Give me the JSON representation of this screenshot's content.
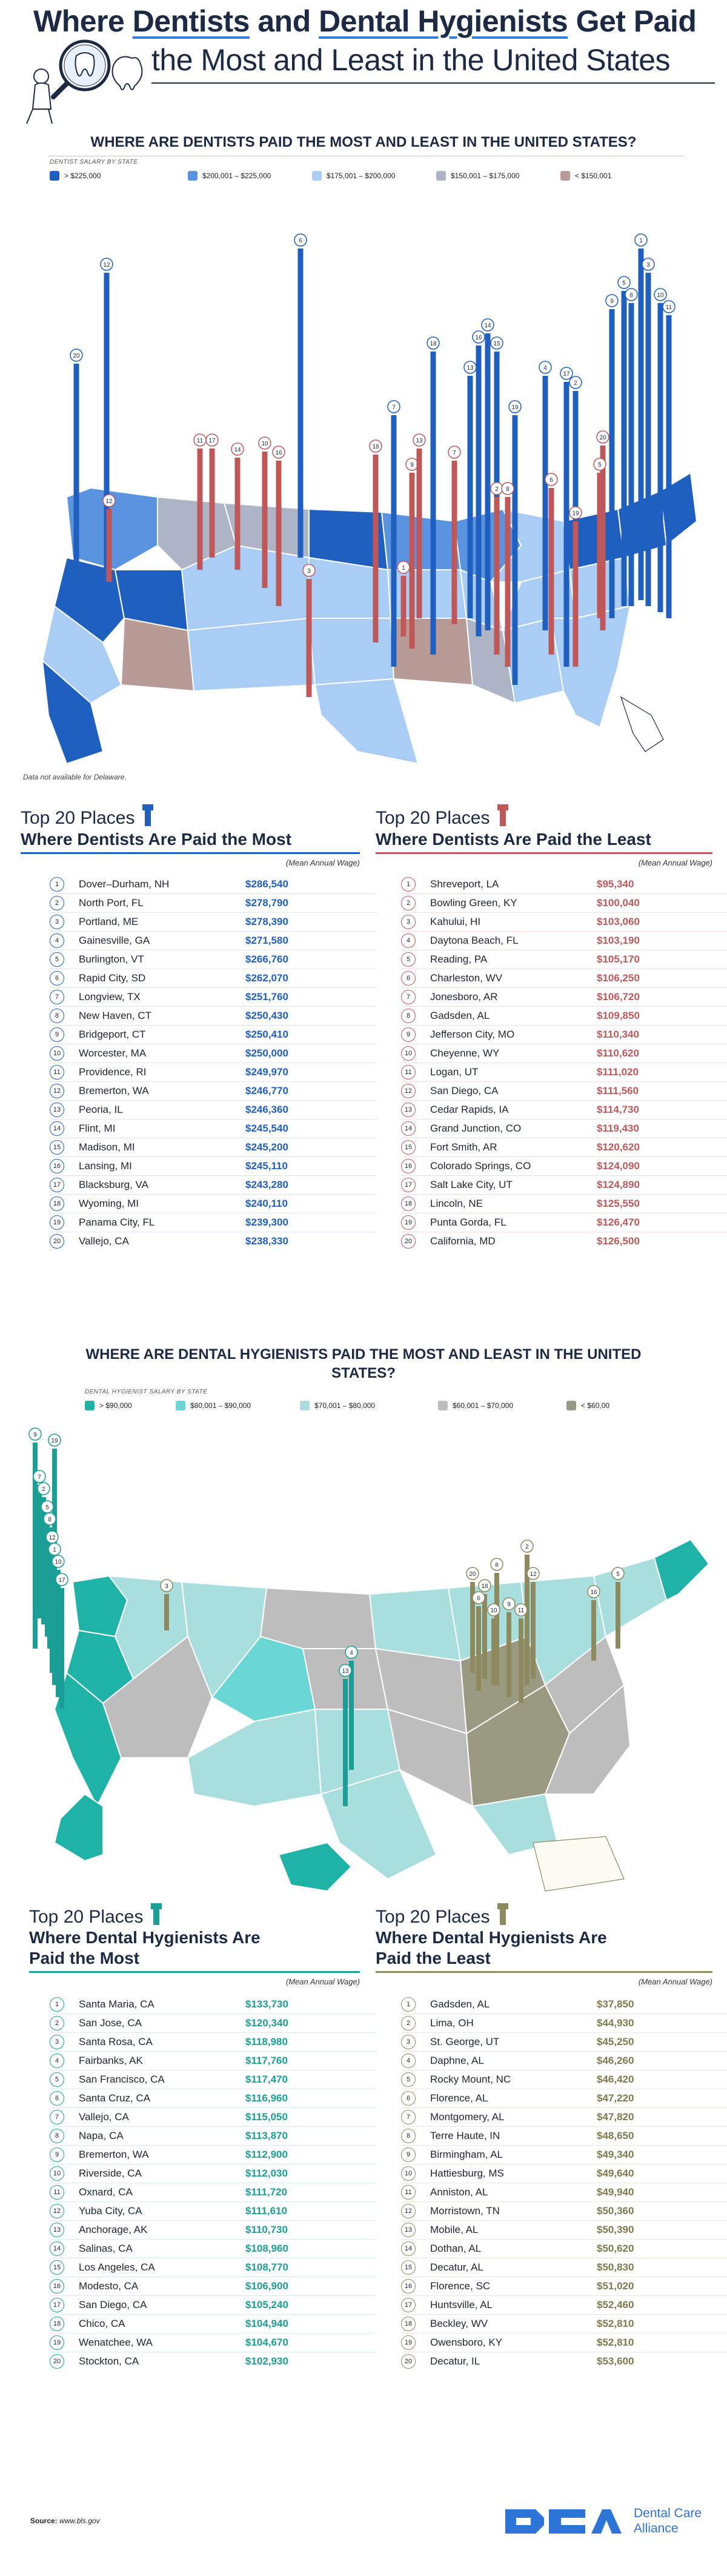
{
  "header": {
    "title_line1_a": "Where ",
    "title_line1_b": "Dentists",
    "title_line1_c": " and ",
    "title_line1_d": "Dental Hygienists",
    "title_line1_e": " Get Paid",
    "title_line2": "the Most and Least in the United States"
  },
  "dentist_map": {
    "title": "WHERE ARE DENTISTS PAID THE MOST AND LEAST IN THE UNITED STATES?",
    "legend_caption": "DENTIST SALARY BY STATE",
    "legend": [
      {
        "label": "> $225,000",
        "color": "#1f5fbf"
      },
      {
        "label": "$200,001 – $225,000",
        "color": "#5a93e0"
      },
      {
        "label": "$175,001 – $200,000",
        "color": "#a9cdf5"
      },
      {
        "label": "$150,001 – $175,000",
        "color": "#adb4c6"
      },
      {
        "label": "< $150,001",
        "color": "#b89a96"
      }
    ],
    "note": "Data not available for Delaware.",
    "colors": {
      "high": "#1f5fbf",
      "low": "#c0585a"
    }
  },
  "dentist_most": {
    "title_top": "Top 20 Places",
    "title_main": "Where Dentists Are Paid the Most",
    "mean_label": "(Mean Annual Wage)",
    "accent": "#1f5fbf",
    "items": [
      {
        "rank": "1",
        "place": "Dover–Durham, NH",
        "wage": "$286,540"
      },
      {
        "rank": "2",
        "place": "North Port, FL",
        "wage": "$278,790"
      },
      {
        "rank": "3",
        "place": "Portland, ME",
        "wage": "$278,390"
      },
      {
        "rank": "4",
        "place": "Gainesville, GA",
        "wage": "$271,580"
      },
      {
        "rank": "5",
        "place": "Burlington, VT",
        "wage": "$266,760"
      },
      {
        "rank": "6",
        "place": "Rapid City, SD",
        "wage": "$262,070"
      },
      {
        "rank": "7",
        "place": "Longview, TX",
        "wage": "$251,760"
      },
      {
        "rank": "8",
        "place": "New Haven, CT",
        "wage": "$250,430"
      },
      {
        "rank": "9",
        "place": "Bridgeport, CT",
        "wage": "$250,410"
      },
      {
        "rank": "10",
        "place": "Worcester, MA",
        "wage": "$250,000"
      },
      {
        "rank": "11",
        "place": "Providence, RI",
        "wage": "$249,970"
      },
      {
        "rank": "12",
        "place": "Bremerton, WA",
        "wage": "$246,770"
      },
      {
        "rank": "13",
        "place": "Peoria, IL",
        "wage": "$246,360"
      },
      {
        "rank": "14",
        "place": "Flint, MI",
        "wage": "$245,540"
      },
      {
        "rank": "15",
        "place": "Madison, MI",
        "wage": "$245,200"
      },
      {
        "rank": "16",
        "place": "Lansing, MI",
        "wage": "$245,110"
      },
      {
        "rank": "17",
        "place": "Blacksburg, VA",
        "wage": "$243,280"
      },
      {
        "rank": "18",
        "place": "Wyoming, MI",
        "wage": "$240,110"
      },
      {
        "rank": "19",
        "place": "Panama City, FL",
        "wage": "$239,300"
      },
      {
        "rank": "20",
        "place": "Vallejo, CA",
        "wage": "$238,330"
      }
    ]
  },
  "dentist_least": {
    "title_top": "Top 20 Places",
    "title_main": "Where Dentists Are Paid the Least",
    "mean_label": "(Mean Annual Wage)",
    "accent": "#c0585a",
    "items": [
      {
        "rank": "1",
        "place": "Shreveport, LA",
        "wage": "$95,340"
      },
      {
        "rank": "2",
        "place": "Bowling Green, KY",
        "wage": "$100,040"
      },
      {
        "rank": "3",
        "place": "Kahului, HI",
        "wage": "$103,060"
      },
      {
        "rank": "4",
        "place": "Daytona Beach, FL",
        "wage": "$103,190"
      },
      {
        "rank": "5",
        "place": "Reading, PA",
        "wage": "$105,170"
      },
      {
        "rank": "6",
        "place": "Charleston, WV",
        "wage": "$106,250"
      },
      {
        "rank": "7",
        "place": "Jonesboro, AR",
        "wage": "$106,720"
      },
      {
        "rank": "8",
        "place": "Gadsden, AL",
        "wage": "$109,850"
      },
      {
        "rank": "9",
        "place": "Jefferson City, MO",
        "wage": "$110,340"
      },
      {
        "rank": "10",
        "place": "Cheyenne, WY",
        "wage": "$110,620"
      },
      {
        "rank": "11",
        "place": "Logan, UT",
        "wage": "$111,020"
      },
      {
        "rank": "12",
        "place": "San Diego, CA",
        "wage": "$111,560"
      },
      {
        "rank": "13",
        "place": "Cedar Rapids, IA",
        "wage": "$114,730"
      },
      {
        "rank": "14",
        "place": "Grand Junction, CO",
        "wage": "$119,430"
      },
      {
        "rank": "15",
        "place": "Fort Smith, AR",
        "wage": "$120,620"
      },
      {
        "rank": "16",
        "place": "Colorado Springs, CO",
        "wage": "$124,090"
      },
      {
        "rank": "17",
        "place": "Salt Lake City, UT",
        "wage": "$124,890"
      },
      {
        "rank": "18",
        "place": "Lincoln, NE",
        "wage": "$125,550"
      },
      {
        "rank": "19",
        "place": "Punta Gorda, FL",
        "wage": "$126,470"
      },
      {
        "rank": "20",
        "place": "California, MD",
        "wage": "$126,500"
      }
    ]
  },
  "hygienist_map": {
    "title": "WHERE ARE DENTAL HYGIENISTS PAID THE MOST AND LEAST IN THE UNITED STATES?",
    "legend_caption": "DENTAL HYGIENIST SALARY BY STATE",
    "legend": [
      {
        "label": "> $90,000",
        "color": "#1fb3a8"
      },
      {
        "label": "$80,001 – $90,000",
        "color": "#6ad6d6"
      },
      {
        "label": "$70,001 – $80,000",
        "color": "#a8dede"
      },
      {
        "label": "$60,001 – $70,000",
        "color": "#bdbdbd"
      },
      {
        "label": "< $60,00",
        "color": "#9a9a82"
      }
    ],
    "colors": {
      "high": "#1a9e96",
      "low": "#8c8a5e"
    }
  },
  "hyg_most": {
    "title_top": "Top 20 Places",
    "title_main": "Where Dental Hygienists Are Paid the Most",
    "mean_label": "(Mean Annual Wage)",
    "accent": "#1a9e96",
    "items": [
      {
        "rank": "1",
        "place": "Santa Maria, CA",
        "wage": "$133,730"
      },
      {
        "rank": "2",
        "place": "San Jose, CA",
        "wage": "$120,340"
      },
      {
        "rank": "3",
        "place": "Santa Rosa, CA",
        "wage": "$118,980"
      },
      {
        "rank": "4",
        "place": "Fairbanks, AK",
        "wage": "$117,760"
      },
      {
        "rank": "5",
        "place": "San Francisco, CA",
        "wage": "$117,470"
      },
      {
        "rank": "6",
        "place": "Santa Cruz, CA",
        "wage": "$116,960"
      },
      {
        "rank": "7",
        "place": "Vallejo, CA",
        "wage": "$115,050"
      },
      {
        "rank": "8",
        "place": "Napa, CA",
        "wage": "$113,870"
      },
      {
        "rank": "9",
        "place": "Bremerton, WA",
        "wage": "$112,900"
      },
      {
        "rank": "10",
        "place": "Riverside, CA",
        "wage": "$112,030"
      },
      {
        "rank": "11",
        "place": "Oxnard, CA",
        "wage": "$111,720"
      },
      {
        "rank": "12",
        "place": "Yuba City, CA",
        "wage": "$111,610"
      },
      {
        "rank": "13",
        "place": "Anchorage, AK",
        "wage": "$110,730"
      },
      {
        "rank": "14",
        "place": "Salinas, CA",
        "wage": "$108,960"
      },
      {
        "rank": "15",
        "place": "Los Angeles, CA",
        "wage": "$108,770"
      },
      {
        "rank": "16",
        "place": "Modesto, CA",
        "wage": "$106,900"
      },
      {
        "rank": "17",
        "place": "San Diego, CA",
        "wage": "$105,240"
      },
      {
        "rank": "18",
        "place": "Chico, CA",
        "wage": "$104,940"
      },
      {
        "rank": "19",
        "place": "Wenatchee, WA",
        "wage": "$104,670"
      },
      {
        "rank": "20",
        "place": "Stockton, CA",
        "wage": "$102,930"
      }
    ]
  },
  "hyg_least": {
    "title_top": "Top 20 Places",
    "title_main": "Where Dental Hygienists Are Paid the Least",
    "mean_label": "(Mean Annual Wage)",
    "accent": "#8c8a5e",
    "items": [
      {
        "rank": "1",
        "place": "Gadsden, AL",
        "wage": "$37,850"
      },
      {
        "rank": "2",
        "place": "Lima, OH",
        "wage": "$44,930"
      },
      {
        "rank": "3",
        "place": "St. George, UT",
        "wage": "$45,250"
      },
      {
        "rank": "4",
        "place": "Daphne, AL",
        "wage": "$46,260"
      },
      {
        "rank": "5",
        "place": "Rocky Mount, NC",
        "wage": "$46,420"
      },
      {
        "rank": "6",
        "place": "Florence, AL",
        "wage": "$47,220"
      },
      {
        "rank": "7",
        "place": "Montgomery, AL",
        "wage": "$47,820"
      },
      {
        "rank": "8",
        "place": "Terre Haute, IN",
        "wage": "$48,650"
      },
      {
        "rank": "9",
        "place": "Birmingham, AL",
        "wage": "$49,340"
      },
      {
        "rank": "10",
        "place": "Hattiesburg, MS",
        "wage": "$49,640"
      },
      {
        "rank": "11",
        "place": "Anniston, AL",
        "wage": "$49,940"
      },
      {
        "rank": "12",
        "place": "Morristown, TN",
        "wage": "$50,360"
      },
      {
        "rank": "13",
        "place": "Mobile, AL",
        "wage": "$50,390"
      },
      {
        "rank": "14",
        "place": "Dothan, AL",
        "wage": "$50,620"
      },
      {
        "rank": "15",
        "place": "Decatur, AL",
        "wage": "$50,830"
      },
      {
        "rank": "16",
        "place": "Florence, SC",
        "wage": "$51,020"
      },
      {
        "rank": "17",
        "place": "Huntsville, AL",
        "wage": "$52,460"
      },
      {
        "rank": "18",
        "place": "Beckley, WV",
        "wage": "$52,810"
      },
      {
        "rank": "19",
        "place": "Owensboro, KY",
        "wage": "$52,810"
      },
      {
        "rank": "20",
        "place": "Decatur, IL",
        "wage": "$53,600"
      }
    ]
  },
  "footer": {
    "source_label": "Source:",
    "source_text": " www.bls.gov",
    "logo_mark": "DCA",
    "logo_line1": "Dental Care",
    "logo_line2": "Alliance"
  }
}
